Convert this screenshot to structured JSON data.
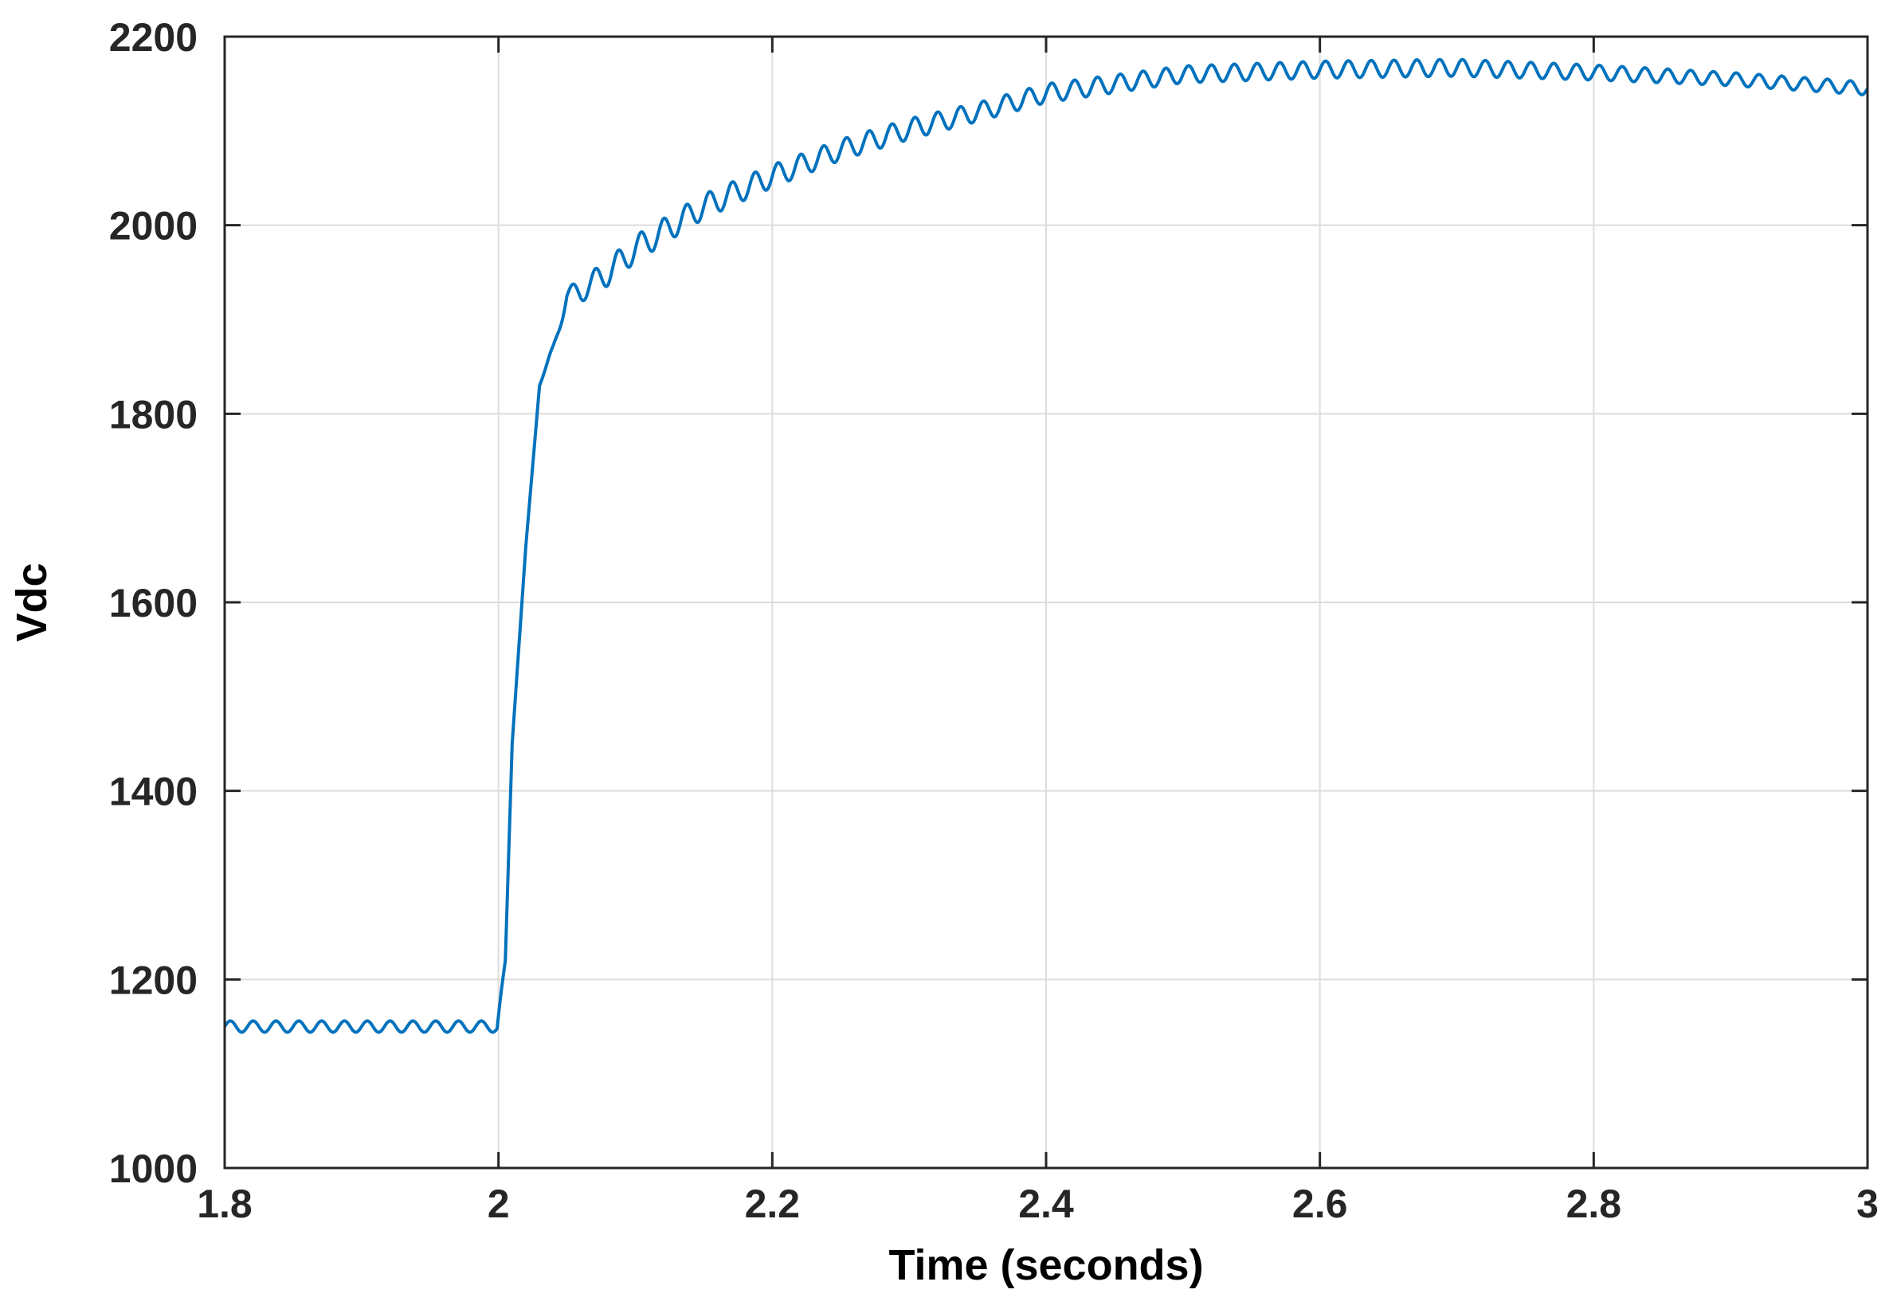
{
  "chart_data": {
    "type": "line",
    "title": "",
    "xlabel": "Time (seconds)",
    "ylabel": "Vdc",
    "xlim": [
      1.8,
      3.0
    ],
    "ylim": [
      1000,
      2200
    ],
    "xticks": [
      1.8,
      2.0,
      2.2,
      2.4,
      2.6,
      2.8,
      3.0
    ],
    "xtick_labels": [
      "1.8",
      "2",
      "2.2",
      "2.4",
      "2.6",
      "2.8",
      "3"
    ],
    "yticks": [
      1000,
      1200,
      1400,
      1600,
      1800,
      2000,
      2200
    ],
    "ytick_labels": [
      "1000",
      "1200",
      "1400",
      "1600",
      "1800",
      "2000",
      "2200"
    ],
    "grid": true,
    "line_color": "#0072BD",
    "series": [
      {
        "ripple_frequency_hz": 60,
        "x": [
          1.8,
          1.95,
          1.999,
          2.005,
          2.01,
          2.02,
          2.03,
          2.04,
          2.05,
          2.06,
          2.08,
          2.1,
          2.15,
          2.2,
          2.25,
          2.3,
          2.35,
          2.4,
          2.5,
          2.6,
          2.7,
          2.8,
          2.9,
          3.0
        ],
        "y": [
          1150,
          1150,
          1150,
          1220,
          1450,
          1660,
          1830,
          1870,
          1925,
          1930,
          1950,
          1975,
          2020,
          2052,
          2080,
          2102,
          2120,
          2140,
          2160,
          2165,
          2167,
          2162,
          2155,
          2145
        ],
        "ripple_amplitude": [
          6,
          6,
          6,
          0,
          0,
          0,
          0,
          4,
          9,
          12,
          14,
          14,
          13,
          12,
          11,
          11,
          10,
          10,
          9,
          9,
          9,
          8,
          7,
          7
        ]
      }
    ]
  }
}
